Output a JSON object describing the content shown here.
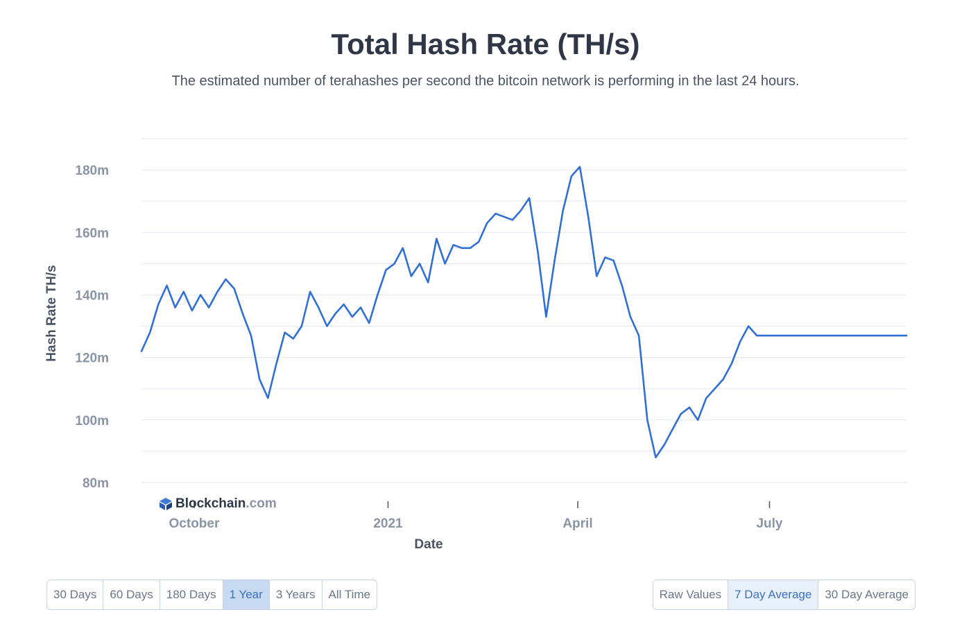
{
  "header": {
    "title": "Total Hash Rate (TH/s)",
    "subtitle": "The estimated number of terahashes per second the bitcoin network is performing in the last 24 hours."
  },
  "watermark": {
    "brand": "Blockchain",
    "suffix": ".com"
  },
  "range_buttons": [
    {
      "label": "30 Days",
      "active": false
    },
    {
      "label": "60 Days",
      "active": false
    },
    {
      "label": "180 Days",
      "active": false
    },
    {
      "label": "1 Year",
      "active": true
    },
    {
      "label": "3 Years",
      "active": false
    },
    {
      "label": "All Time",
      "active": false
    }
  ],
  "mode_buttons": [
    {
      "label": "Raw Values",
      "active": false
    },
    {
      "label": "7 Day Average",
      "active": true
    },
    {
      "label": "30 Day Average",
      "active": false
    }
  ],
  "colors": {
    "line": "#2f6fd6",
    "grid": "#e3e7ee"
  },
  "chart_data": {
    "type": "line",
    "title": "Total Hash Rate (TH/s)",
    "xlabel": "Date",
    "ylabel": "Hash Rate TH/s",
    "ylim": [
      78,
      190
    ],
    "xlim": [
      "2020-09-06",
      "2021-09-04"
    ],
    "y_ticks": [
      {
        "value": 80,
        "label": "80m"
      },
      {
        "value": 100,
        "label": "100m"
      },
      {
        "value": 120,
        "label": "120m"
      },
      {
        "value": 140,
        "label": "140m"
      },
      {
        "value": 160,
        "label": "160m"
      },
      {
        "value": 180,
        "label": "180m"
      }
    ],
    "x_ticks": [
      {
        "date": "2020-10-01",
        "label": "October"
      },
      {
        "date": "2021-01-01",
        "label": "2021"
      },
      {
        "date": "2021-04-01",
        "label": "April"
      },
      {
        "date": "2021-07-01",
        "label": "July"
      }
    ],
    "grid": true,
    "legend": "none",
    "series": [
      {
        "x": [
          "2020-09-06",
          "2020-09-10",
          "2020-09-14",
          "2020-09-18",
          "2020-09-22",
          "2020-09-26",
          "2020-09-30",
          "2020-10-04",
          "2020-10-08",
          "2020-10-12",
          "2020-10-16",
          "2020-10-20",
          "2020-10-24",
          "2020-10-28",
          "2020-11-01",
          "2020-11-05",
          "2020-11-09",
          "2020-11-13",
          "2020-11-17",
          "2020-11-21",
          "2020-11-25",
          "2020-11-29",
          "2020-12-03",
          "2020-12-07",
          "2020-12-11",
          "2020-12-15",
          "2020-12-19",
          "2020-12-23",
          "2020-12-27",
          "2020-12-31",
          "2021-01-04",
          "2021-01-08",
          "2021-01-12",
          "2021-01-16",
          "2021-01-20",
          "2021-01-24",
          "2021-01-28",
          "2021-02-01",
          "2021-02-05",
          "2021-02-09",
          "2021-02-13",
          "2021-02-17",
          "2021-02-21",
          "2021-02-25",
          "2021-03-01",
          "2021-03-05",
          "2021-03-09",
          "2021-03-13",
          "2021-03-17",
          "2021-03-21",
          "2021-03-25",
          "2021-03-29",
          "2021-04-02",
          "2021-04-06",
          "2021-04-10",
          "2021-04-14",
          "2021-04-18",
          "2021-04-22",
          "2021-04-26",
          "2021-04-30",
          "2021-05-04",
          "2021-05-08",
          "2021-05-12",
          "2021-05-16",
          "2021-05-20",
          "2021-05-24",
          "2021-05-28",
          "2021-06-01",
          "2021-06-05",
          "2021-06-09",
          "2021-06-13",
          "2021-06-17",
          "2021-06-21",
          "2021-06-25",
          "2021-06-29",
          "2021-07-03",
          "2021-07-07",
          "2021-07-11",
          "2021-07-15",
          "2021-07-19",
          "2021-07-23",
          "2021-07-27",
          "2021-07-31",
          "2021-08-04",
          "2021-08-08",
          "2021-08-12",
          "2021-08-16",
          "2021-08-20",
          "2021-08-24",
          "2021-08-28",
          "2021-09-01",
          "2021-09-04"
        ],
        "y": [
          122,
          128,
          137,
          143,
          136,
          141,
          135,
          140,
          136,
          141,
          145,
          142,
          134,
          127,
          113,
          107,
          118,
          128,
          126,
          130,
          141,
          136,
          130,
          134,
          137,
          133,
          136,
          131,
          140,
          148,
          150,
          155,
          146,
          150,
          144,
          158,
          150,
          156,
          155,
          155,
          157,
          163,
          166,
          165,
          164,
          167,
          171,
          154,
          133,
          151,
          167,
          178,
          181,
          165,
          146,
          152,
          151,
          143,
          133,
          127,
          100,
          88,
          92,
          97,
          102,
          104,
          100,
          107,
          110,
          113,
          118,
          125,
          130,
          127,
          127,
          127,
          127,
          127,
          127,
          127,
          127,
          127,
          127,
          127,
          127,
          127,
          127,
          127,
          127,
          127,
          127,
          127
        ]
      }
    ]
  }
}
